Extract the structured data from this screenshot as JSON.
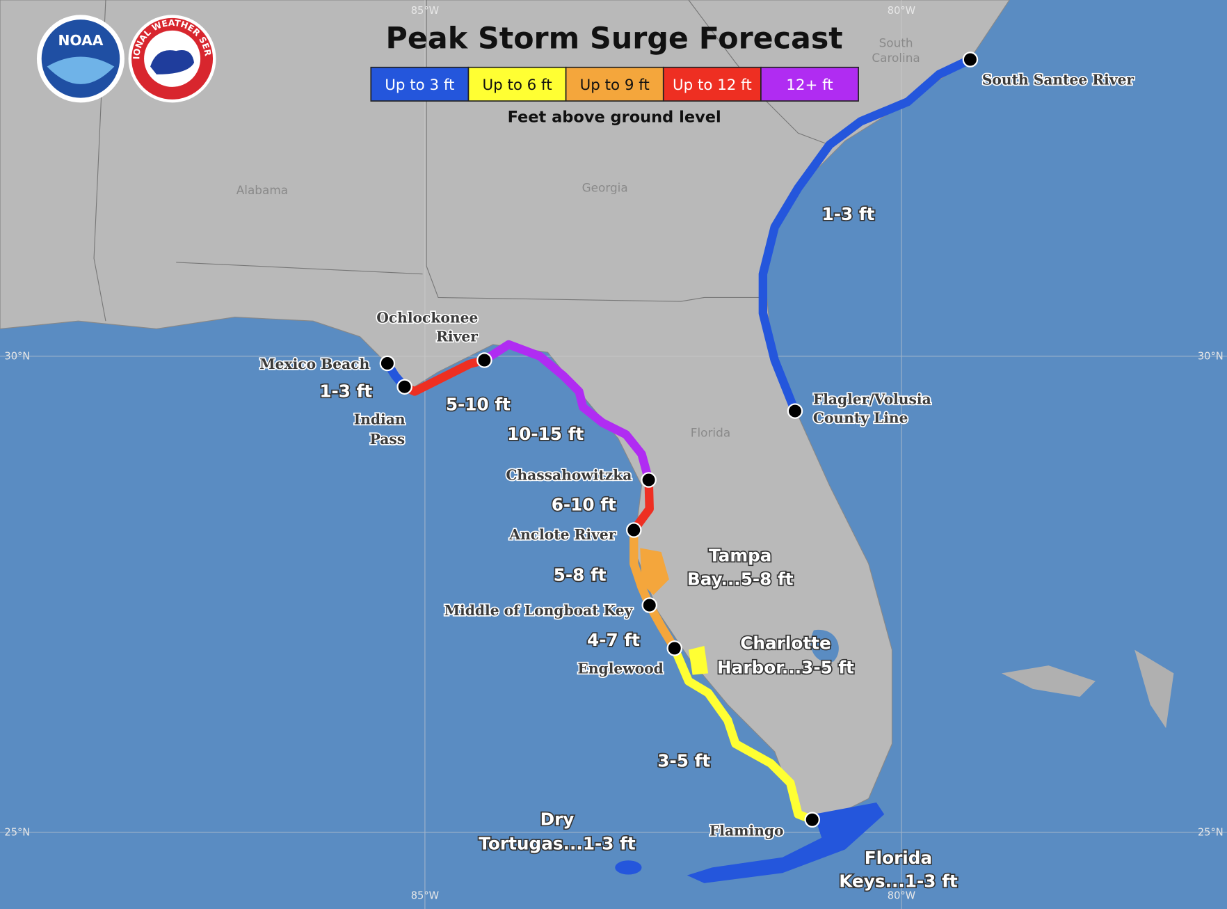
{
  "header": {
    "title": "Peak Storm Surge Forecast",
    "legend_caption": "Feet above ground level"
  },
  "legend": [
    {
      "label": "Up to 3 ft",
      "color": "#2456dc"
    },
    {
      "label": "Up to 6 ft",
      "color": "#ffff33"
    },
    {
      "label": "Up to 9 ft",
      "color": "#f4a63c"
    },
    {
      "label": "Up to 12 ft",
      "color": "#ee2f22"
    },
    {
      "label": "12+ ft",
      "color": "#b02cf2"
    }
  ],
  "logos": {
    "noaa": "NOAA",
    "nws": "NATIONAL WEATHER SERVICE"
  },
  "graticule": {
    "lon_west": "85°W",
    "lon_east": "80°W",
    "lat_north": "30°N",
    "lat_south": "25°N"
  },
  "states": {
    "alabama": "Alabama",
    "georgia": "Georgia",
    "florida": "Florida",
    "south_carolina": [
      "South",
      "Carolina"
    ]
  },
  "places": [
    [
      "South Santee River"
    ],
    [
      "Flagler/Volusia",
      "County Line"
    ],
    [
      "Ochlockonee",
      "River"
    ],
    [
      "Mexico Beach"
    ],
    [
      "Indian",
      "Pass"
    ],
    [
      "Chassahowitzka"
    ],
    [
      "Anclote River"
    ],
    [
      "Middle of Longboat Key"
    ],
    [
      "Englewood"
    ],
    [
      "Flamingo"
    ]
  ],
  "surge": [
    [
      "1-3 ft"
    ],
    [
      "1-3 ft"
    ],
    [
      "5-10 ft"
    ],
    [
      "10-15 ft"
    ],
    [
      "6-10 ft"
    ],
    [
      "5-8 ft"
    ],
    [
      "Tampa",
      "Bay...5-8 ft"
    ],
    [
      "4-7 ft"
    ],
    [
      "Charlotte",
      "Harbor...3-5 ft"
    ],
    [
      "3-5 ft"
    ],
    [
      "Dry",
      "Tortugas...1-3 ft"
    ],
    [
      "Florida",
      "Keys...1-3 ft"
    ]
  ]
}
